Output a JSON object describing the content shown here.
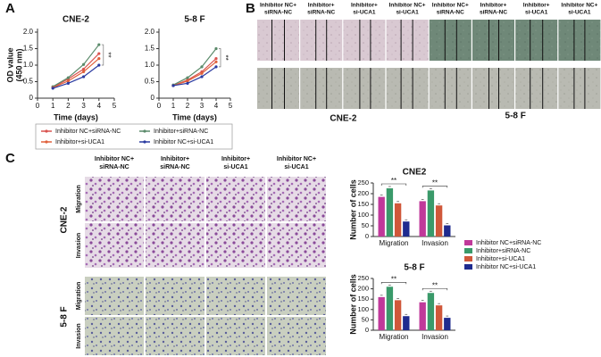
{
  "panels": {
    "a": "A",
    "b": "B",
    "c": "C"
  },
  "scratch": {
    "columns": [
      [
        "Inhibitor NC+",
        "siRNA-NC"
      ],
      [
        "Inhibitor+",
        "siRNA-NC"
      ],
      [
        "Inhibitor+",
        "si-UCA1"
      ],
      [
        "Inhibitor NC+",
        "si-UCA1"
      ],
      [
        "Inhibitor NC+",
        "siRNA-NC"
      ],
      [
        "Inhibitor+",
        "siRNA-NC"
      ],
      [
        "Inhibitor+",
        "si-UCA1"
      ],
      [
        "Inhibitor NC+",
        "si-UCA1"
      ]
    ],
    "cell_lines": [
      "CNE-2",
      "5-8 F"
    ]
  },
  "transwell": {
    "columns": [
      [
        "Inhibitor NC+",
        "siRNA-NC"
      ],
      [
        "Inhibitor+",
        "siRNA-NC"
      ],
      [
        "Inhibitor+",
        "si-UCA1"
      ],
      [
        "Inhibitor NC+",
        "si-UCA1"
      ]
    ],
    "groups": [
      {
        "name": "CNE-2",
        "rows": [
          "Migration",
          "Invasion"
        ]
      },
      {
        "name": "5-8 F",
        "rows": [
          "Migration",
          "Invasion"
        ]
      }
    ]
  },
  "chart_data": [
    {
      "type": "line",
      "title": "CNE-2",
      "x_label": "Time (days)",
      "y_label": [
        "OD value",
        "(450 nm)"
      ],
      "x": [
        1,
        2,
        3,
        4
      ],
      "xlim": [
        0,
        5
      ],
      "xticks": [
        0,
        1,
        2,
        3,
        4,
        5
      ],
      "ylim": [
        0,
        2
      ],
      "yticks": [
        0,
        0.5,
        {
          "value": 1,
          "label": "1.0"
        },
        1.5,
        {
          "value": 2,
          "label": "2.0"
        }
      ],
      "annotations": [
        "**"
      ],
      "legend": "bottom",
      "series": [
        {
          "name": "Inhibitor NC+siRNA-NC",
          "color": "#d9534f",
          "values": [
            0.33,
            0.58,
            0.88,
            1.35
          ]
        },
        {
          "name": "Inhibitor+siRNA-NC",
          "color": "#5a8a6a",
          "values": [
            0.35,
            0.62,
            1.02,
            1.62
          ]
        },
        {
          "name": "Inhibitor+si-UCA1",
          "color": "#e0603a",
          "values": [
            0.32,
            0.52,
            0.8,
            1.2
          ]
        },
        {
          "name": "Inhibitor NC+si-UCA1",
          "color": "#2a3aa0",
          "values": [
            0.3,
            0.45,
            0.65,
            1.0
          ]
        }
      ]
    },
    {
      "type": "line",
      "title": "5-8 F",
      "x_label": "Time (days)",
      "x": [
        1,
        2,
        3,
        4
      ],
      "xlim": [
        0,
        5
      ],
      "xticks": [
        0,
        1,
        2,
        3,
        4,
        5
      ],
      "ylim": [
        0,
        2
      ],
      "yticks": [
        0,
        0.5,
        {
          "value": 1,
          "label": "1.0"
        },
        1.5,
        {
          "value": 2,
          "label": "2.0"
        }
      ],
      "annotations": [
        "**"
      ],
      "series": [
        {
          "color": "#d9534f",
          "values": [
            0.38,
            0.55,
            0.8,
            1.2
          ]
        },
        {
          "color": "#5a8a6a",
          "values": [
            0.4,
            0.62,
            0.95,
            1.5
          ]
        },
        {
          "color": "#e0603a",
          "values": [
            0.38,
            0.52,
            0.75,
            1.1
          ]
        },
        {
          "color": "#2a3aa0",
          "values": [
            0.38,
            0.45,
            0.65,
            0.95
          ]
        }
      ]
    },
    {
      "type": "bar",
      "title": "CNE2",
      "y_label": "Number of cells",
      "categories": [
        "Migration",
        "Invasion"
      ],
      "ylim": [
        0,
        250
      ],
      "yticks": [
        0,
        50,
        100,
        150,
        200,
        250
      ],
      "annotations": [
        "**",
        "**"
      ],
      "legend": "right",
      "series": [
        {
          "name": "Inhibitor NC+siRNA-NC",
          "color": "#c0399a",
          "values": [
            185,
            165
          ]
        },
        {
          "name": "Inhibitor+siRNA-NC",
          "color": "#3a9a6a",
          "values": [
            225,
            215
          ]
        },
        {
          "name": "Inhibitor+si-UCA1",
          "color": "#d0583a",
          "values": [
            155,
            145
          ]
        },
        {
          "name": "Inhibitor NC+si-UCA1",
          "color": "#1f2b8f",
          "values": [
            70,
            52
          ]
        }
      ]
    },
    {
      "type": "bar",
      "title": "5-8 F",
      "y_label": "Number of cells",
      "categories": [
        "Migration",
        "Invasion"
      ],
      "ylim": [
        0,
        250
      ],
      "yticks": [
        0,
        50,
        100,
        150,
        200,
        250
      ],
      "annotations": [
        "**",
        "**"
      ],
      "series": [
        {
          "color": "#c0399a",
          "values": [
            160,
            135
          ]
        },
        {
          "color": "#3a9a6a",
          "values": [
            210,
            180
          ]
        },
        {
          "color": "#d0583a",
          "values": [
            145,
            120
          ]
        },
        {
          "color": "#1f2b8f",
          "values": [
            68,
            60
          ]
        }
      ]
    }
  ]
}
